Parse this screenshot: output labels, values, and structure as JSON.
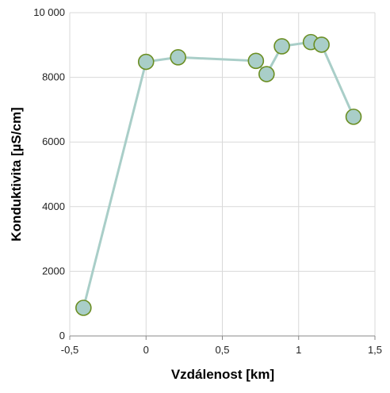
{
  "chart_data": {
    "type": "line",
    "xlabel": "Vzdálenost [km]",
    "ylabel": "Konduktivita [µS/cm]",
    "xlim": [
      -0.5,
      1.5
    ],
    "ylim": [
      0,
      10000
    ],
    "x_ticks": [
      "-0,5",
      "0",
      "0,5",
      "1",
      "1,5"
    ],
    "y_ticks": [
      "0",
      "2000",
      "4000",
      "6000",
      "8000",
      "10 000"
    ],
    "grid": true,
    "colors": {
      "line": "#A9CEC8",
      "marker_fill": "#A9CEC8",
      "marker_edge": "#6B8E23",
      "grid": "#D9D9D9"
    },
    "series": [
      {
        "x": [
          -0.41,
          0.0,
          0.21,
          0.72,
          0.79,
          0.89,
          1.08,
          1.15,
          1.36
        ],
        "y": [
          870,
          8480,
          8620,
          8510,
          8100,
          8960,
          9090,
          9010,
          6780
        ]
      }
    ]
  }
}
